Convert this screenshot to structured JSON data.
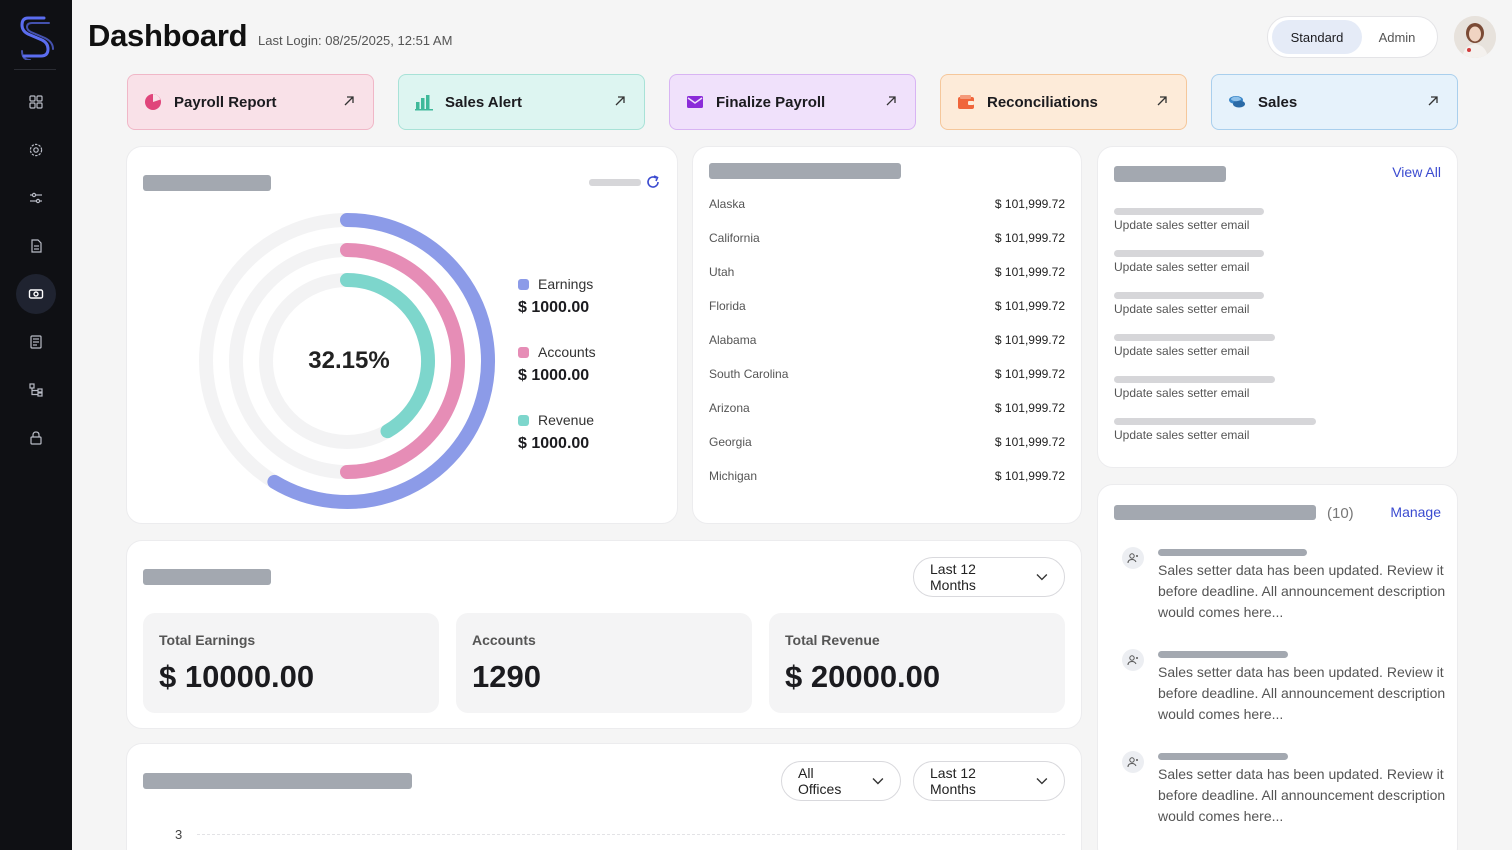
{
  "header": {
    "title": "Dashboard",
    "last_login": "Last Login: 08/25/2025, 12:51 AM",
    "roles": [
      "Standard",
      "Admin"
    ],
    "active_role": "Standard"
  },
  "sidebar": {
    "items": [
      {
        "icon": "grid-icon"
      },
      {
        "icon": "gear-icon"
      },
      {
        "icon": "sliders-icon"
      },
      {
        "icon": "document-icon"
      },
      {
        "icon": "money-icon",
        "active": true
      },
      {
        "icon": "ledger-icon"
      },
      {
        "icon": "hierarchy-icon"
      },
      {
        "icon": "lock-icon"
      }
    ]
  },
  "quick_links": [
    {
      "label": "Payroll Report",
      "bg": "#f9e1e8",
      "border": "#f0b7c7",
      "icon_color": "#e0457b"
    },
    {
      "label": "Sales Alert",
      "bg": "#ddf5f1",
      "border": "#a8e2d7",
      "icon_color": "#3fb99a"
    },
    {
      "label": "Finalize Payroll",
      "bg": "#f0e1fb",
      "border": "#d8b4f3",
      "icon_color": "#8b2bd9"
    },
    {
      "label": "Reconciliations",
      "bg": "#fdebd9",
      "border": "#f5c79b",
      "icon_color": "#f0653a"
    },
    {
      "label": "Sales",
      "bg": "#e6f2fb",
      "border": "#a9cfed",
      "icon_color": "#3a86c8"
    }
  ],
  "donut": {
    "center_label": "32.15%",
    "legend": [
      {
        "label": "Earnings",
        "value": "$ 1000.00",
        "color": "#8c9be8"
      },
      {
        "label": "Accounts",
        "value": "$ 1000.00",
        "color": "#e68db6"
      },
      {
        "label": "Revenue",
        "value": "$ 1000.00",
        "color": "#7dd6cc"
      }
    ]
  },
  "states": [
    {
      "name": "Alaska",
      "amount": "$ 101,999.72"
    },
    {
      "name": "California",
      "amount": "$ 101,999.72"
    },
    {
      "name": "Utah",
      "amount": "$ 101,999.72"
    },
    {
      "name": "Florida",
      "amount": "$ 101,999.72"
    },
    {
      "name": "Alabama",
      "amount": "$ 101,999.72"
    },
    {
      "name": "South Carolina",
      "amount": "$ 101,999.72"
    },
    {
      "name": "Arizona",
      "amount": "$ 101,999.72"
    },
    {
      "name": "Georgia",
      "amount": "$ 101,999.72"
    },
    {
      "name": "Michigan",
      "amount": "$ 101,999.72"
    }
  ],
  "tasks": {
    "view_all": "View All",
    "items": [
      "Update sales setter email",
      "Update sales setter email",
      "Update sales setter email",
      "Update sales setter email",
      "Update sales setter email",
      "Update sales setter email"
    ]
  },
  "announcements": {
    "count": "(10)",
    "manage": "Manage",
    "items": [
      "Sales setter data has been updated. Review it before deadline. All announcement description would comes here...",
      "Sales setter data has been updated. Review it before deadline. All announcement description would comes here...",
      "Sales setter data has been updated. Review it before deadline. All announcement description would comes here..."
    ]
  },
  "stats": {
    "period": "Last 12 Months",
    "cards": [
      {
        "label": "Total Earnings",
        "value": "$ 10000.00"
      },
      {
        "label": "Accounts",
        "value": "1290"
      },
      {
        "label": "Total Revenue",
        "value": "$ 20000.00"
      }
    ]
  },
  "bottom_chart": {
    "office_filter": "All Offices",
    "period": "Last 12 Months",
    "y_tick_top": "3"
  }
}
